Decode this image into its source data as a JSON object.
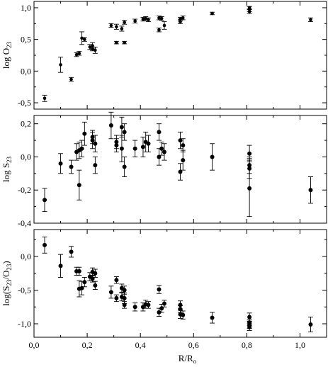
{
  "chart_data": [
    {
      "type": "scatter",
      "ylabel": {
        "main": "log O",
        "sub": "23"
      },
      "ylim": [
        -0.6,
        1.1
      ],
      "yticks": [
        -0.5,
        0.0,
        0.5,
        1.0
      ],
      "yticklabels": [
        "-0,5",
        "0,0",
        "0,5",
        "1,0"
      ],
      "xlim": [
        0.0,
        1.1
      ],
      "marker_style": "small",
      "series": [
        {
          "points": [
            {
              "x": 0.04,
              "y": -0.43,
              "err": 0.05
            },
            {
              "x": 0.1,
              "y": 0.1,
              "err": 0.12
            },
            {
              "x": 0.14,
              "y": -0.13,
              "err": 0.03
            },
            {
              "x": 0.16,
              "y": 0.26,
              "err": 0.03
            },
            {
              "x": 0.17,
              "y": 0.28,
              "err": 0.03
            },
            {
              "x": 0.18,
              "y": 0.52,
              "err": 0.1
            },
            {
              "x": 0.19,
              "y": 0.5,
              "err": 0.03
            },
            {
              "x": 0.21,
              "y": 0.38,
              "err": 0.04
            },
            {
              "x": 0.22,
              "y": 0.4,
              "err": 0.05
            },
            {
              "x": 0.22,
              "y": 0.35,
              "err": 0.03
            },
            {
              "x": 0.23,
              "y": 0.33,
              "err": 0.05
            },
            {
              "x": 0.29,
              "y": 0.72,
              "err": 0.03
            },
            {
              "x": 0.31,
              "y": 0.7,
              "err": 0.04
            },
            {
              "x": 0.31,
              "y": 0.45,
              "err": 0.02
            },
            {
              "x": 0.33,
              "y": 0.67,
              "err": 0.04
            },
            {
              "x": 0.34,
              "y": 0.77,
              "err": 0.03
            },
            {
              "x": 0.34,
              "y": 0.45,
              "err": 0.02
            },
            {
              "x": 0.38,
              "y": 0.79,
              "err": 0.03
            },
            {
              "x": 0.41,
              "y": 0.82,
              "err": 0.03
            },
            {
              "x": 0.42,
              "y": 0.83,
              "err": 0.03
            },
            {
              "x": 0.43,
              "y": 0.81,
              "err": 0.03
            },
            {
              "x": 0.47,
              "y": 0.84,
              "err": 0.03
            },
            {
              "x": 0.47,
              "y": 0.65,
              "err": 0.03
            },
            {
              "x": 0.48,
              "y": 0.83,
              "err": 0.03
            },
            {
              "x": 0.49,
              "y": 0.72,
              "err": 0.06
            },
            {
              "x": 0.55,
              "y": 0.78,
              "err": 0.03
            },
            {
              "x": 0.55,
              "y": 0.82,
              "err": 0.03
            },
            {
              "x": 0.56,
              "y": 0.84,
              "err": 0.03
            },
            {
              "x": 0.67,
              "y": 0.91,
              "err": 0.02
            },
            {
              "x": 0.81,
              "y": 0.98,
              "err": 0.04
            },
            {
              "x": 0.81,
              "y": 0.94,
              "err": 0.03
            },
            {
              "x": 0.81,
              "y": 1.0,
              "err": 0.02
            },
            {
              "x": 1.04,
              "y": 0.81,
              "err": 0.03
            }
          ]
        }
      ]
    },
    {
      "type": "scatter",
      "ylabel": {
        "main": "log S",
        "sub": "23"
      },
      "ylim": [
        -0.4,
        0.25
      ],
      "yticks": [
        -0.4,
        -0.2,
        0.0,
        0.2
      ],
      "yticklabels": [
        "-0,4",
        "-0,2",
        "0,0",
        "0,2"
      ],
      "xlim": [
        0.0,
        1.1
      ],
      "marker_style": "large",
      "series": [
        {
          "points": [
            {
              "x": 0.04,
              "y": -0.26,
              "err": 0.07
            },
            {
              "x": 0.1,
              "y": -0.04,
              "err": 0.06
            },
            {
              "x": 0.14,
              "y": -0.06,
              "err": 0.04
            },
            {
              "x": 0.16,
              "y": 0.03,
              "err": 0.05
            },
            {
              "x": 0.17,
              "y": -0.17,
              "err": 0.09
            },
            {
              "x": 0.17,
              "y": 0.04,
              "err": 0.05
            },
            {
              "x": 0.18,
              "y": 0.05,
              "err": 0.05
            },
            {
              "x": 0.19,
              "y": 0.14,
              "err": 0.07
            },
            {
              "x": 0.22,
              "y": 0.1,
              "err": 0.05
            },
            {
              "x": 0.22,
              "y": 0.12,
              "err": 0.04
            },
            {
              "x": 0.23,
              "y": 0.08,
              "err": 0.05
            },
            {
              "x": 0.23,
              "y": -0.05,
              "err": 0.05
            },
            {
              "x": 0.29,
              "y": 0.19,
              "err": 0.08
            },
            {
              "x": 0.31,
              "y": 0.07,
              "err": 0.04
            },
            {
              "x": 0.31,
              "y": 0.09,
              "err": 0.04
            },
            {
              "x": 0.33,
              "y": 0.05,
              "err": 0.08
            },
            {
              "x": 0.33,
              "y": 0.18,
              "err": 0.06
            },
            {
              "x": 0.34,
              "y": 0.15,
              "err": 0.05
            },
            {
              "x": 0.34,
              "y": -0.06,
              "err": 0.06
            },
            {
              "x": 0.38,
              "y": 0.05,
              "err": 0.05
            },
            {
              "x": 0.41,
              "y": 0.06,
              "err": 0.06
            },
            {
              "x": 0.42,
              "y": 0.09,
              "err": 0.06
            },
            {
              "x": 0.43,
              "y": 0.08,
              "err": 0.05
            },
            {
              "x": 0.47,
              "y": 0.15,
              "err": 0.05
            },
            {
              "x": 0.47,
              "y": 0.0,
              "err": 0.05
            },
            {
              "x": 0.48,
              "y": 0.05,
              "err": 0.04
            },
            {
              "x": 0.49,
              "y": 0.03,
              "err": 0.05
            },
            {
              "x": 0.55,
              "y": 0.1,
              "err": 0.05
            },
            {
              "x": 0.55,
              "y": -0.09,
              "err": 0.05
            },
            {
              "x": 0.56,
              "y": 0.07,
              "err": 0.04
            },
            {
              "x": 0.56,
              "y": -0.02,
              "err": 0.06
            },
            {
              "x": 0.67,
              "y": 0.0,
              "err": 0.08
            },
            {
              "x": 0.81,
              "y": -0.19,
              "err": 0.17
            },
            {
              "x": 0.81,
              "y": -0.07,
              "err": 0.06
            },
            {
              "x": 0.81,
              "y": -0.05,
              "err": 0.05
            },
            {
              "x": 0.81,
              "y": 0.02,
              "err": 0.05
            },
            {
              "x": 1.04,
              "y": -0.2,
              "err": 0.08
            }
          ]
        }
      ]
    },
    {
      "type": "scatter",
      "ylabel": {
        "main": "log(S",
        "sub1": "23",
        "mid": "/O",
        "sub2": "23",
        "end": ")"
      },
      "ylim": [
        -1.2,
        0.4
      ],
      "yticks": [
        -1.0,
        -0.5,
        0.0
      ],
      "yticklabels": [
        "-1,0",
        "-0,5",
        "0,0"
      ],
      "xlim": [
        0.0,
        1.1
      ],
      "xlabel": {
        "main": "R/R",
        "sub": "o"
      },
      "xticks": [
        0.0,
        0.2,
        0.4,
        0.6,
        0.8,
        1.0
      ],
      "xticklabels": [
        "0,0",
        "0,2",
        "0,4",
        "0,6",
        "0,8",
        "1,0"
      ],
      "marker_style": "large",
      "series": [
        {
          "points": [
            {
              "x": 0.04,
              "y": 0.17,
              "err": 0.12
            },
            {
              "x": 0.1,
              "y": -0.14,
              "err": 0.17
            },
            {
              "x": 0.14,
              "y": 0.07,
              "err": 0.08
            },
            {
              "x": 0.16,
              "y": -0.22,
              "err": 0.06
            },
            {
              "x": 0.17,
              "y": -0.48,
              "err": 0.12
            },
            {
              "x": 0.17,
              "y": -0.22,
              "err": 0.06
            },
            {
              "x": 0.18,
              "y": -0.47,
              "err": 0.1
            },
            {
              "x": 0.19,
              "y": -0.38,
              "err": 0.07
            },
            {
              "x": 0.21,
              "y": -0.3,
              "err": 0.06
            },
            {
              "x": 0.22,
              "y": -0.23,
              "err": 0.06
            },
            {
              "x": 0.22,
              "y": -0.33,
              "err": 0.05
            },
            {
              "x": 0.23,
              "y": -0.25,
              "err": 0.06
            },
            {
              "x": 0.23,
              "y": -0.43,
              "err": 0.06
            },
            {
              "x": 0.29,
              "y": -0.53,
              "err": 0.09
            },
            {
              "x": 0.31,
              "y": -0.35,
              "err": 0.05
            },
            {
              "x": 0.31,
              "y": -0.62,
              "err": 0.05
            },
            {
              "x": 0.33,
              "y": -0.47,
              "err": 0.06
            },
            {
              "x": 0.33,
              "y": -0.6,
              "err": 0.06
            },
            {
              "x": 0.34,
              "y": -0.5,
              "err": 0.06
            },
            {
              "x": 0.34,
              "y": -0.62,
              "err": 0.08
            },
            {
              "x": 0.34,
              "y": -0.72,
              "err": 0.05
            },
            {
              "x": 0.38,
              "y": -0.75,
              "err": 0.06
            },
            {
              "x": 0.41,
              "y": -0.75,
              "err": 0.06
            },
            {
              "x": 0.42,
              "y": -0.71,
              "err": 0.06
            },
            {
              "x": 0.43,
              "y": -0.72,
              "err": 0.05
            },
            {
              "x": 0.47,
              "y": -0.49,
              "err": 0.06
            },
            {
              "x": 0.47,
              "y": -0.83,
              "err": 0.06
            },
            {
              "x": 0.48,
              "y": -0.77,
              "err": 0.06
            },
            {
              "x": 0.49,
              "y": -0.7,
              "err": 0.05
            },
            {
              "x": 0.55,
              "y": -0.72,
              "err": 0.06
            },
            {
              "x": 0.55,
              "y": -0.78,
              "err": 0.05
            },
            {
              "x": 0.55,
              "y": -0.86,
              "err": 0.06
            },
            {
              "x": 0.56,
              "y": -0.87,
              "err": 0.06
            },
            {
              "x": 0.67,
              "y": -0.91,
              "err": 0.08
            },
            {
              "x": 0.81,
              "y": -0.9,
              "err": 0.06
            },
            {
              "x": 0.81,
              "y": -0.98,
              "err": 0.05
            },
            {
              "x": 0.81,
              "y": -1.02,
              "err": 0.05
            },
            {
              "x": 0.81,
              "y": -1.05,
              "err": 0.05
            },
            {
              "x": 1.04,
              "y": -1.01,
              "err": 0.11
            }
          ]
        }
      ]
    }
  ]
}
